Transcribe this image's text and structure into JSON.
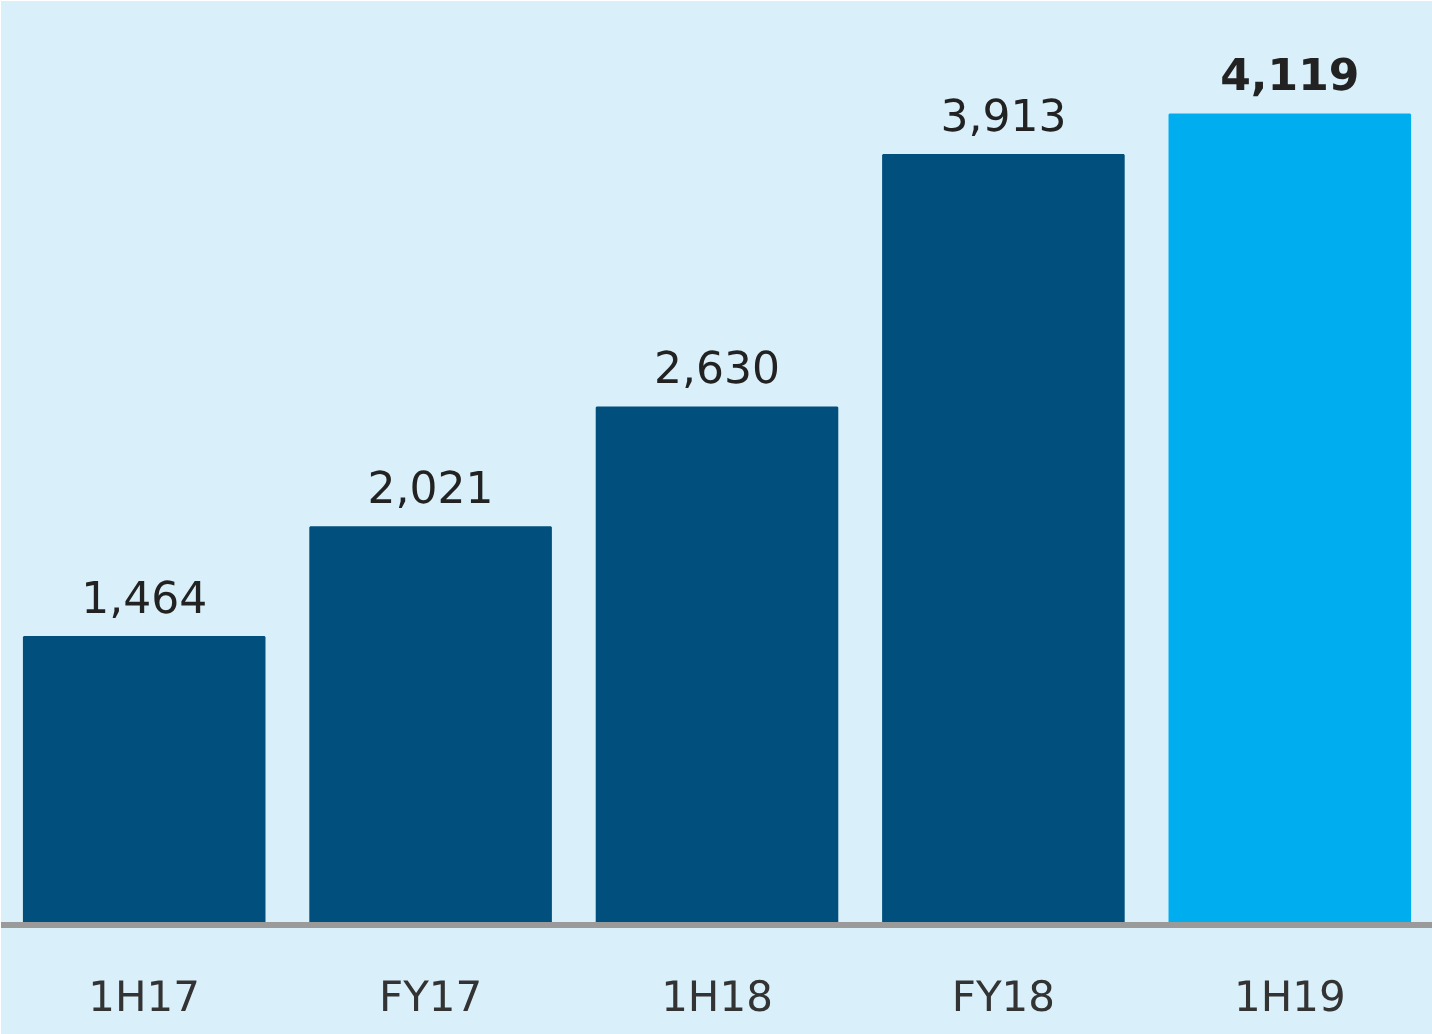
{
  "chart_data": {
    "type": "bar",
    "categories": [
      "1H17",
      "FY17",
      "1H18",
      "FY18",
      "1H19"
    ],
    "values": [
      1464,
      2021,
      2630,
      3913,
      4119
    ],
    "colors": [
      "#004f7d",
      "#004f7d",
      "#004f7d",
      "#004f7d",
      "#00aeef"
    ],
    "value_labels": [
      "1,464",
      "2,021",
      "2,630",
      "3,913",
      "4,119"
    ],
    "grid": false
  }
}
